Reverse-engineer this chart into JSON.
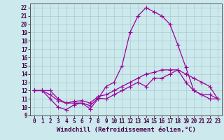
{
  "title": "",
  "xlabel": "Windchill (Refroidissement éolien,°C)",
  "xlim": [
    -0.5,
    23.5
  ],
  "ylim": [
    9,
    22.5
  ],
  "xticks": [
    0,
    1,
    2,
    3,
    4,
    5,
    6,
    7,
    8,
    9,
    10,
    11,
    12,
    13,
    14,
    15,
    16,
    17,
    18,
    19,
    20,
    21,
    22,
    23
  ],
  "yticks": [
    9,
    10,
    11,
    12,
    13,
    14,
    15,
    16,
    17,
    18,
    19,
    20,
    21,
    22
  ],
  "background_color": "#cce9ed",
  "grid_color": "#aacccc",
  "line_color": "#990099",
  "line1_x": [
    0,
    1,
    2,
    3,
    4,
    5,
    6,
    7,
    8,
    9,
    10,
    11,
    12,
    13,
    14,
    15,
    16,
    17,
    18,
    19,
    20,
    21,
    22,
    23
  ],
  "line1_y": [
    12.0,
    12.0,
    12.0,
    11.0,
    10.5,
    10.5,
    10.5,
    9.8,
    11.0,
    12.5,
    13.0,
    15.0,
    19.0,
    21.0,
    22.0,
    21.5,
    21.0,
    20.0,
    17.5,
    14.8,
    12.0,
    11.5,
    11.0,
    11.0
  ],
  "line2_x": [
    0,
    1,
    2,
    3,
    4,
    5,
    6,
    7,
    8,
    9,
    10,
    11,
    12,
    13,
    14,
    15,
    16,
    17,
    18,
    19,
    20,
    21,
    22,
    23
  ],
  "line2_y": [
    12.0,
    12.0,
    11.0,
    10.0,
    9.7,
    10.3,
    10.5,
    10.2,
    11.1,
    11.0,
    11.5,
    12.0,
    12.5,
    13.0,
    12.5,
    13.5,
    13.5,
    14.0,
    14.5,
    13.0,
    12.0,
    11.5,
    11.5,
    11.0
  ],
  "line3_x": [
    0,
    1,
    2,
    3,
    4,
    5,
    6,
    7,
    8,
    9,
    10,
    11,
    12,
    13,
    14,
    15,
    16,
    17,
    18,
    19,
    20,
    21,
    22,
    23
  ],
  "line3_y": [
    12.0,
    12.0,
    11.5,
    10.8,
    10.5,
    10.7,
    10.8,
    10.5,
    11.3,
    11.5,
    12.0,
    12.5,
    13.0,
    13.5,
    14.0,
    14.2,
    14.5,
    14.5,
    14.5,
    14.0,
    13.5,
    13.0,
    12.5,
    11.0
  ],
  "marker": "+",
  "markersize": 4,
  "markeredgewidth": 0.8,
  "linewidth": 0.9,
  "tick_fontsize": 5.5,
  "xlabel_fontsize": 6.5,
  "spine_color": "#555555"
}
